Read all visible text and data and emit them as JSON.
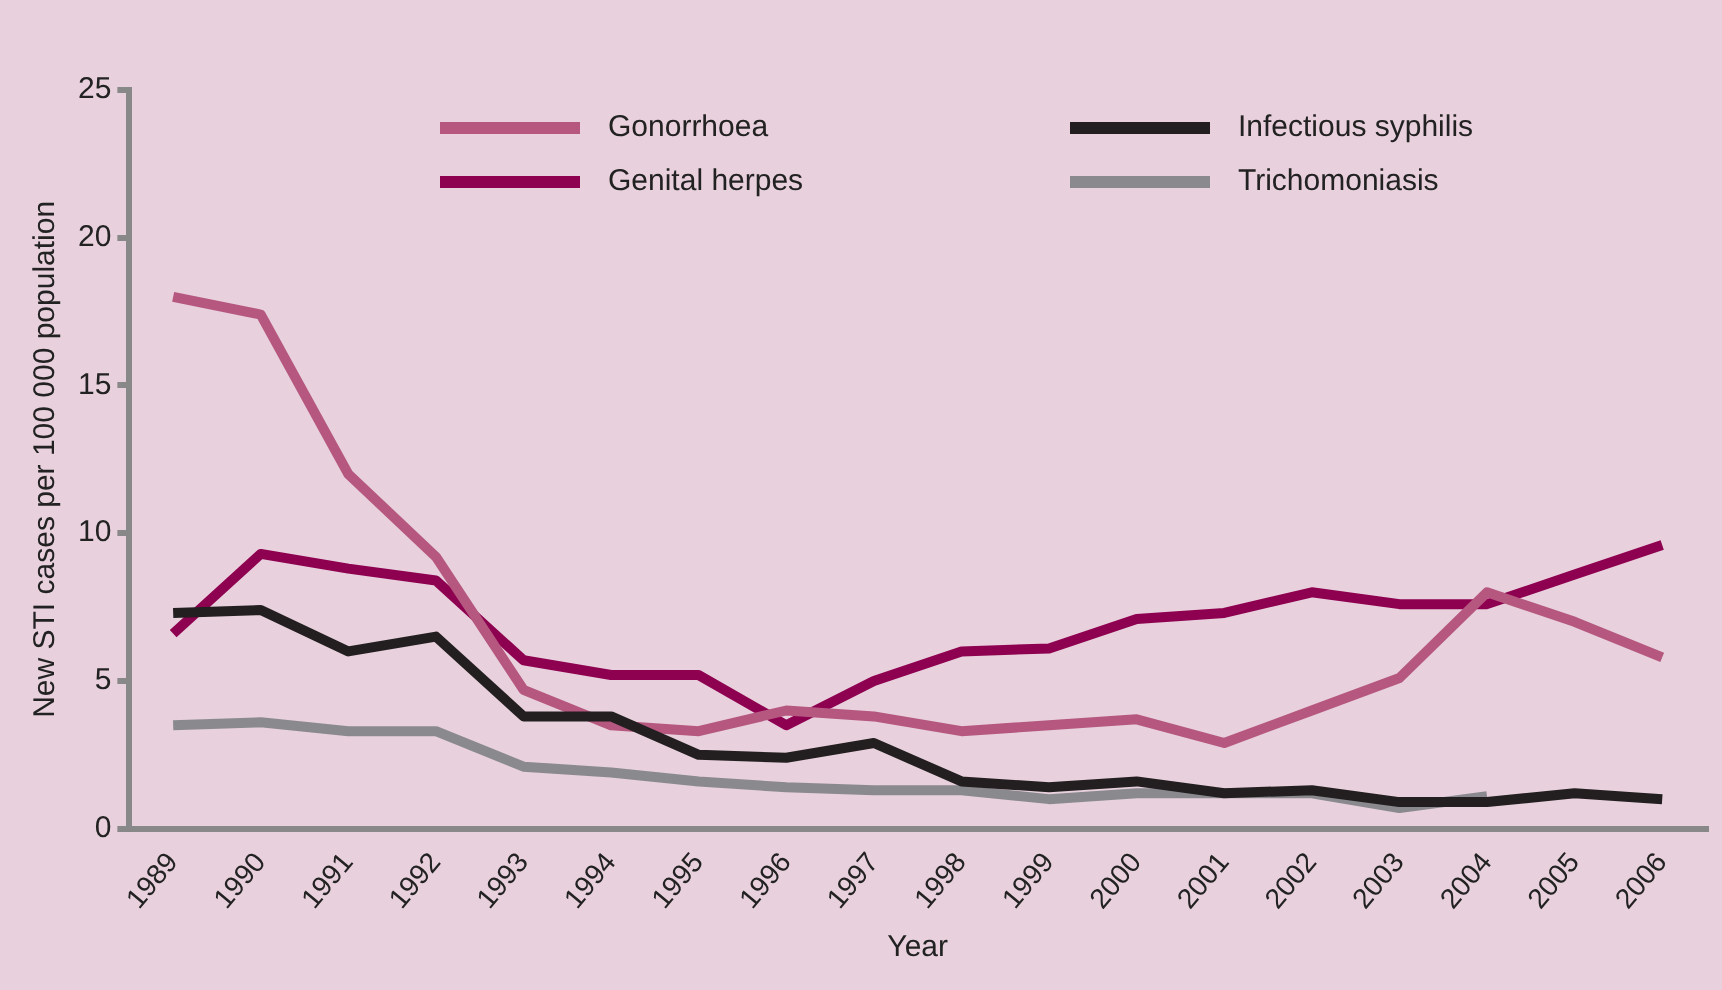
{
  "chart_data": {
    "type": "line",
    "xlabel": "Year",
    "ylabel": "New STI cases per 100 000 population",
    "categories": [
      "1989",
      "1990",
      "1991",
      "1992",
      "1993",
      "1994",
      "1995",
      "1996",
      "1997",
      "1998",
      "1999",
      "2000",
      "2001",
      "2002",
      "2003",
      "2004",
      "2005",
      "2006"
    ],
    "series": [
      {
        "name": "Gonorrhoea",
        "color": "#b5577f",
        "values": [
          18.0,
          17.4,
          12.0,
          9.2,
          4.7,
          3.5,
          3.3,
          4.0,
          3.8,
          3.3,
          3.5,
          3.7,
          2.9,
          4.0,
          5.1,
          8.0,
          7.0,
          5.8
        ]
      },
      {
        "name": "Genital herpes",
        "color": "#8e0050",
        "values": [
          6.6,
          9.3,
          8.8,
          8.4,
          5.7,
          5.2,
          5.2,
          3.5,
          5.0,
          6.0,
          6.1,
          7.1,
          7.3,
          8.0,
          7.6,
          7.6,
          8.6,
          9.6
        ]
      },
      {
        "name": "Infectious syphilis",
        "color": "#231f20",
        "values": [
          7.3,
          7.4,
          6.0,
          6.5,
          3.8,
          3.8,
          2.5,
          2.4,
          2.9,
          1.6,
          1.4,
          1.6,
          1.2,
          1.3,
          0.9,
          0.9,
          1.2,
          1.0
        ]
      },
      {
        "name": "Trichomoniasis",
        "color": "#8a8a8e",
        "values": [
          3.5,
          3.6,
          3.3,
          3.3,
          2.1,
          1.9,
          1.6,
          1.4,
          1.3,
          1.3,
          1.0,
          1.2,
          1.2,
          1.2,
          0.7,
          1.1,
          null,
          null
        ]
      }
    ],
    "ylim": [
      0,
      25
    ],
    "yticks": [
      0,
      5,
      10,
      15,
      20,
      25
    ],
    "grid": false,
    "legend": "top"
  }
}
